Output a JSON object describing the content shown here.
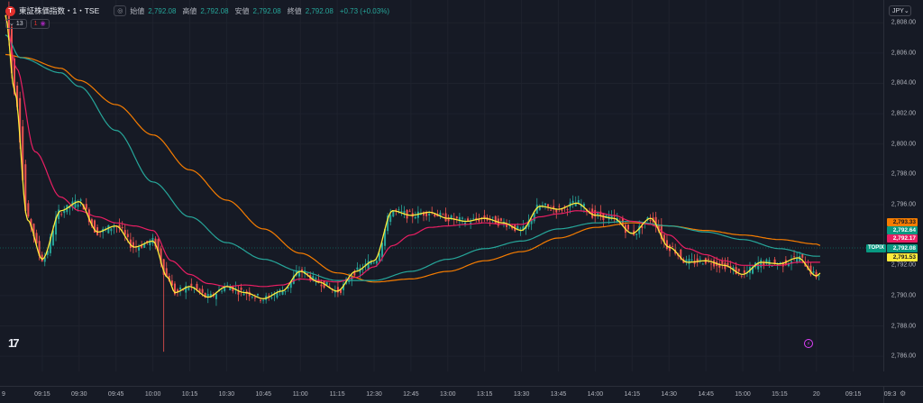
{
  "header": {
    "symbol_logo": "T",
    "symbol_title": "東証株価指数・1・TSE",
    "eye_icon": "eye-icon",
    "ohlc": [
      {
        "label": "始値",
        "value": "2,792.08"
      },
      {
        "label": "高値",
        "value": "2,792.08"
      },
      {
        "label": "安値",
        "value": "2,792.08"
      },
      {
        "label": "終値",
        "value": "2,792.08"
      }
    ],
    "change": "+0.73 (+0.03%)",
    "indicator_count": "13",
    "indicator_icon_a": "1",
    "indicator_icon_b": "◉"
  },
  "currency": "JPY",
  "price_axis": {
    "ticks": [
      "2,808.00",
      "2,806.00",
      "2,804.00",
      "2,802.00",
      "2,800.00",
      "2,798.00",
      "2,796.00",
      "2,794.00",
      "2,792.00",
      "2,790.00",
      "2,788.00",
      "2,786.00"
    ]
  },
  "time_axis": {
    "labels": [
      "9",
      "09:15",
      "09:30",
      "09:45",
      "10:00",
      "10:15",
      "10:30",
      "10:45",
      "11:00",
      "11:15",
      "12:30",
      "12:45",
      "13:00",
      "13:15",
      "13:30",
      "13:45",
      "14:00",
      "14:15",
      "14:30",
      "14:45",
      "15:00",
      "15:15",
      "20",
      "09:15",
      "09:3"
    ]
  },
  "price_labels": [
    {
      "value": "2,793.33",
      "bg": "#f57c00",
      "fg": "#131722"
    },
    {
      "value": "2,792.64",
      "bg": "#089981",
      "fg": "#ffffff"
    },
    {
      "value": "2,792.17",
      "bg": "#e91e63",
      "fg": "#ffffff"
    },
    {
      "value": "2,792.08",
      "bg": "#089981",
      "fg": "#ffffff"
    },
    {
      "value": "2,791.53",
      "bg": "#ffeb3b",
      "fg": "#131722"
    }
  ],
  "symbol_tag": "TOPIX",
  "tv_logo": "17",
  "flash": "⚡",
  "colors": {
    "up": "#26a69a",
    "down": "#ef5350",
    "ema_fast": "#ffeb3b",
    "ema_mid": "#e91e63",
    "ema_slow": "#26a69a",
    "ema_long": "#f57c00"
  },
  "chart_data": {
    "type": "candlestick",
    "ylim": [
      2785,
      2809.5
    ],
    "x_labels": [
      "9",
      "09:15",
      "09:30",
      "09:45",
      "10:00",
      "10:15",
      "10:30",
      "10:45",
      "11:00",
      "11:15",
      "12:30",
      "12:45",
      "13:00",
      "13:15",
      "13:30",
      "13:45",
      "14:00",
      "14:15",
      "14:30",
      "14:45",
      "15:00",
      "15:15",
      "20"
    ],
    "series": [
      {
        "color": "#ffeb3b",
        "anchors": [
          [
            0,
            2808.5
          ],
          [
            0.25,
            2803.5
          ],
          [
            0.6,
            2795
          ],
          [
            1,
            2792.4
          ],
          [
            1.5,
            2795.6
          ],
          [
            2,
            2796.2
          ],
          [
            2.5,
            2794.2
          ],
          [
            3,
            2794.6
          ],
          [
            3.5,
            2793.2
          ],
          [
            4,
            2793.6
          ],
          [
            4.4,
            2791.2
          ],
          [
            4.6,
            2790.2
          ],
          [
            5,
            2790.6
          ],
          [
            5.5,
            2789.9
          ],
          [
            6,
            2790.6
          ],
          [
            6.5,
            2790.2
          ],
          [
            7,
            2789.8
          ],
          [
            7.5,
            2790.3
          ],
          [
            8,
            2791.6
          ],
          [
            8.5,
            2790.9
          ],
          [
            9,
            2790.3
          ],
          [
            9.5,
            2791.6
          ],
          [
            10,
            2792.3
          ],
          [
            10.5,
            2795.6
          ],
          [
            11,
            2795.3
          ],
          [
            11.5,
            2795.5
          ],
          [
            12,
            2795.1
          ],
          [
            12.5,
            2794.9
          ],
          [
            13,
            2795.1
          ],
          [
            13.5,
            2794.8
          ],
          [
            14,
            2794.3
          ],
          [
            14.5,
            2795.9
          ],
          [
            15,
            2795.7
          ],
          [
            15.5,
            2796.1
          ],
          [
            16,
            2795.3
          ],
          [
            16.5,
            2795.1
          ],
          [
            17,
            2794.1
          ],
          [
            17.5,
            2795.1
          ],
          [
            18,
            2793.2
          ],
          [
            18.5,
            2792.2
          ],
          [
            19,
            2792.3
          ],
          [
            19.5,
            2792.0
          ],
          [
            20,
            2791.4
          ],
          [
            20.5,
            2792.2
          ],
          [
            21,
            2792.1
          ],
          [
            21.5,
            2792.5
          ],
          [
            22,
            2791.3
          ],
          [
            22.12,
            2791.5
          ]
        ]
      },
      {
        "color": "#e91e63",
        "anchors": [
          [
            0,
            2808.2
          ],
          [
            0.3,
            2805
          ],
          [
            0.8,
            2799.5
          ],
          [
            1.5,
            2796.5
          ],
          [
            2,
            2795.6
          ],
          [
            2.5,
            2795.2
          ],
          [
            3,
            2794.8
          ],
          [
            3.5,
            2794.6
          ],
          [
            4,
            2794.3
          ],
          [
            4.5,
            2792.3
          ],
          [
            5,
            2791.4
          ],
          [
            5.5,
            2790.8
          ],
          [
            6,
            2790.6
          ],
          [
            6.5,
            2790.7
          ],
          [
            7,
            2790.6
          ],
          [
            7.5,
            2790.7
          ],
          [
            8,
            2791.1
          ],
          [
            8.5,
            2791.0
          ],
          [
            9,
            2790.9
          ],
          [
            9.5,
            2791.2
          ],
          [
            10,
            2791.9
          ],
          [
            10.5,
            2793.3
          ],
          [
            11,
            2794.0
          ],
          [
            11.5,
            2794.5
          ],
          [
            12,
            2794.6
          ],
          [
            12.5,
            2794.7
          ],
          [
            13,
            2794.8
          ],
          [
            13.5,
            2794.7
          ],
          [
            14,
            2794.7
          ],
          [
            14.5,
            2795.2
          ],
          [
            15,
            2795.4
          ],
          [
            15.5,
            2795.6
          ],
          [
            16,
            2795.5
          ],
          [
            16.5,
            2795.3
          ],
          [
            17,
            2794.9
          ],
          [
            17.5,
            2794.7
          ],
          [
            18,
            2794.0
          ],
          [
            18.5,
            2793.1
          ],
          [
            19,
            2792.7
          ],
          [
            19.5,
            2792.3
          ],
          [
            20,
            2792.0
          ],
          [
            20.5,
            2792.0
          ],
          [
            21,
            2792.0
          ],
          [
            21.5,
            2792.2
          ],
          [
            22,
            2792.2
          ],
          [
            22.12,
            2792.2
          ]
        ]
      },
      {
        "color": "#26a69a",
        "anchors": [
          [
            0,
            2807.2
          ],
          [
            0.4,
            2805.7
          ],
          [
            1.5,
            2804.7
          ],
          [
            2,
            2803.8
          ],
          [
            3,
            2800.9
          ],
          [
            4,
            2797.5
          ],
          [
            5,
            2795.2
          ],
          [
            6,
            2793.5
          ],
          [
            7,
            2792.4
          ],
          [
            8,
            2791.6
          ],
          [
            9,
            2791.0
          ],
          [
            10,
            2791.0
          ],
          [
            11,
            2791.6
          ],
          [
            12,
            2792.4
          ],
          [
            13,
            2793.1
          ],
          [
            14,
            2793.6
          ],
          [
            15,
            2794.4
          ],
          [
            16,
            2794.8
          ],
          [
            17,
            2794.9
          ],
          [
            18,
            2794.6
          ],
          [
            19,
            2794.2
          ],
          [
            20,
            2793.7
          ],
          [
            21,
            2793.1
          ],
          [
            22,
            2792.6
          ],
          [
            22.12,
            2792.6
          ]
        ]
      },
      {
        "color": "#f57c00",
        "anchors": [
          [
            0,
            2805.9
          ],
          [
            0.5,
            2805.7
          ],
          [
            1.5,
            2805.0
          ],
          [
            2,
            2804.2
          ],
          [
            3,
            2802.6
          ],
          [
            4,
            2800.6
          ],
          [
            5,
            2798.3
          ],
          [
            6,
            2796.3
          ],
          [
            7,
            2794.4
          ],
          [
            8,
            2792.8
          ],
          [
            9,
            2791.5
          ],
          [
            10,
            2790.9
          ],
          [
            11,
            2791.1
          ],
          [
            12,
            2791.6
          ],
          [
            13,
            2792.3
          ],
          [
            14,
            2792.9
          ],
          [
            15,
            2793.8
          ],
          [
            16,
            2794.5
          ],
          [
            17,
            2794.8
          ],
          [
            18,
            2794.6
          ],
          [
            19,
            2794.3
          ],
          [
            20,
            2794.0
          ],
          [
            21,
            2793.7
          ],
          [
            22,
            2793.4
          ],
          [
            22.12,
            2793.3
          ]
        ]
      }
    ]
  }
}
